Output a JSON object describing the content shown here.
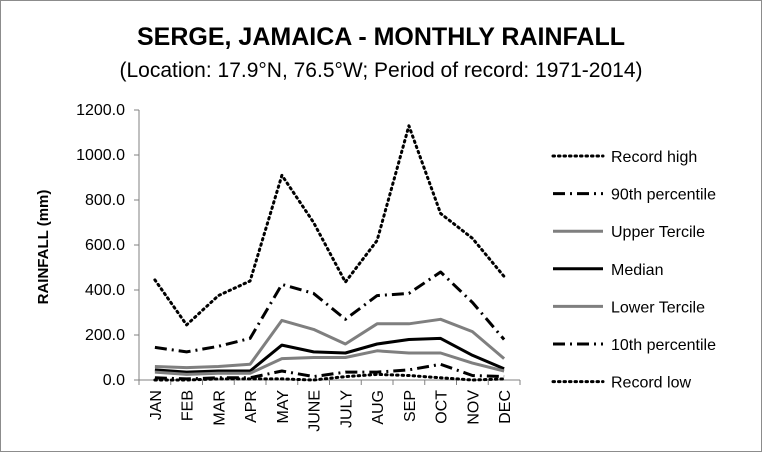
{
  "chart_data": {
    "type": "line",
    "title": "SERGE, JAMAICA - MONTHLY RAINFALL",
    "subtitle": "(Location: 17.9°N, 76.5°W; Period of record: 1971-2014)",
    "xlabel": "",
    "ylabel": "RAINFALL (mm)",
    "ylim": [
      0,
      1200
    ],
    "yticks": [
      0,
      200,
      400,
      600,
      800,
      1000,
      1200
    ],
    "ytick_labels": [
      "0.0",
      "200.0",
      "400.0",
      "600.0",
      "800.0",
      "1000.0",
      "1200.0"
    ],
    "categories": [
      "JAN",
      "FEB",
      "MAR",
      "APR",
      "MAY",
      "JUNE",
      "JULY",
      "AUG",
      "SEP",
      "OCT",
      "NOV",
      "DEC"
    ],
    "grid": false,
    "legend": "right",
    "series": [
      {
        "name": "Record high",
        "style": "dot",
        "color": "#000000",
        "width": 3,
        "values": [
          445,
          245,
          375,
          440,
          910,
          700,
          435,
          620,
          1130,
          740,
          630,
          460
        ]
      },
      {
        "name": "90th percentile",
        "style": "dashdot",
        "color": "#000000",
        "width": 3,
        "values": [
          145,
          125,
          150,
          185,
          425,
          385,
          270,
          375,
          385,
          480,
          345,
          180
        ]
      },
      {
        "name": "Upper Tercile",
        "style": "solid",
        "color": "#7f7f7f",
        "width": 3,
        "values": [
          60,
          55,
          60,
          70,
          265,
          225,
          160,
          250,
          250,
          270,
          215,
          95
        ]
      },
      {
        "name": "Median",
        "style": "solid",
        "color": "#000000",
        "width": 3,
        "values": [
          45,
          35,
          40,
          40,
          155,
          125,
          120,
          160,
          180,
          185,
          110,
          50
        ]
      },
      {
        "name": "Lower Tercile",
        "style": "solid",
        "color": "#7f7f7f",
        "width": 3,
        "values": [
          35,
          25,
          30,
          30,
          95,
          100,
          100,
          130,
          120,
          120,
          75,
          40
        ]
      },
      {
        "name": "10th percentile",
        "style": "dashdot",
        "color": "#000000",
        "width": 3,
        "values": [
          10,
          5,
          10,
          10,
          40,
          15,
          35,
          35,
          45,
          70,
          20,
          15
        ]
      },
      {
        "name": "Record low",
        "style": "dot",
        "color": "#000000",
        "width": 3,
        "values": [
          0,
          0,
          5,
          5,
          5,
          0,
          15,
          25,
          20,
          10,
          0,
          5
        ]
      }
    ]
  }
}
